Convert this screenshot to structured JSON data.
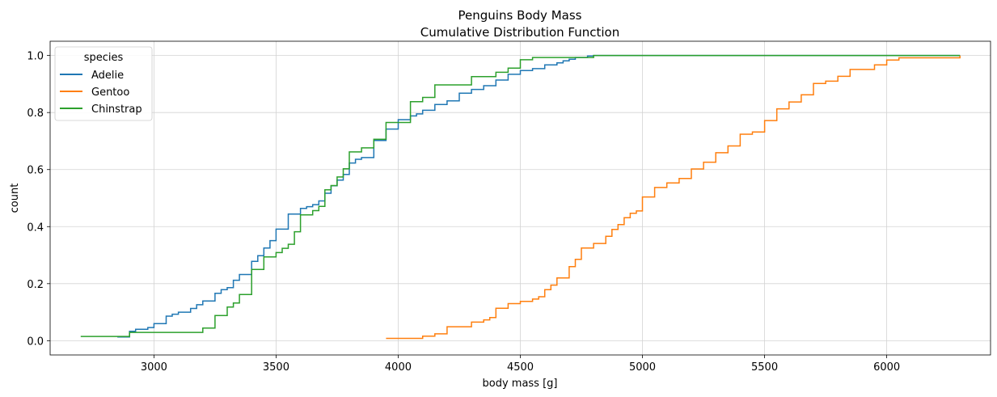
{
  "chart_data": {
    "type": "line",
    "title": "Penguins Body Mass",
    "subtitle": "Cumulative Distribution Function",
    "xlabel": "body mass [g]",
    "ylabel": "count",
    "xlim": [
      2575,
      6425
    ],
    "ylim": [
      -0.05,
      1.05
    ],
    "xticks": [
      3000,
      3500,
      4000,
      4500,
      5000,
      5500,
      6000
    ],
    "yticks": [
      0.0,
      0.2,
      0.4,
      0.6,
      0.8,
      1.0
    ],
    "ytick_labels": [
      "0.0",
      "0.2",
      "0.4",
      "0.6",
      "0.8",
      "1.0"
    ],
    "grid": true,
    "legend": {
      "title": "species",
      "position": "top-left"
    },
    "step": "post",
    "series": [
      {
        "name": "Adelie",
        "color": "#1f77b4",
        "x": [
          2850,
          2900,
          2925,
          2975,
          3000,
          3050,
          3075,
          3100,
          3150,
          3175,
          3200,
          3250,
          3275,
          3300,
          3325,
          3350,
          3400,
          3425,
          3450,
          3475,
          3500,
          3550,
          3600,
          3625,
          3650,
          3675,
          3700,
          3725,
          3750,
          3775,
          3800,
          3825,
          3850,
          3900,
          3950,
          4000,
          4050,
          4075,
          4100,
          4150,
          4200,
          4250,
          4300,
          4350,
          4400,
          4450,
          4500,
          4550,
          4600,
          4650,
          4675,
          4700,
          4725,
          4775,
          4800
        ],
        "y": [
          0.013,
          0.033,
          0.04,
          0.046,
          0.06,
          0.086,
          0.093,
          0.1,
          0.113,
          0.126,
          0.139,
          0.166,
          0.179,
          0.186,
          0.212,
          0.232,
          0.278,
          0.298,
          0.325,
          0.351,
          0.391,
          0.444,
          0.464,
          0.47,
          0.477,
          0.49,
          0.517,
          0.543,
          0.563,
          0.583,
          0.623,
          0.636,
          0.642,
          0.702,
          0.742,
          0.775,
          0.788,
          0.795,
          0.808,
          0.828,
          0.841,
          0.868,
          0.881,
          0.894,
          0.914,
          0.934,
          0.947,
          0.954,
          0.967,
          0.974,
          0.981,
          0.987,
          0.993,
          0.998,
          1.0
        ]
      },
      {
        "name": "Gentoo",
        "color": "#ff7f0e",
        "x": [
          3950,
          4100,
          4150,
          4200,
          4300,
          4350,
          4375,
          4400,
          4450,
          4500,
          4550,
          4575,
          4600,
          4625,
          4650,
          4700,
          4725,
          4750,
          4800,
          4850,
          4875,
          4900,
          4925,
          4950,
          4975,
          5000,
          5050,
          5100,
          5150,
          5200,
          5250,
          5300,
          5350,
          5400,
          5450,
          5500,
          5550,
          5600,
          5650,
          5700,
          5750,
          5800,
          5850,
          5950,
          6000,
          6050,
          6300
        ],
        "y": [
          0.008,
          0.016,
          0.024,
          0.049,
          0.065,
          0.073,
          0.081,
          0.114,
          0.13,
          0.138,
          0.146,
          0.154,
          0.179,
          0.195,
          0.22,
          0.26,
          0.285,
          0.325,
          0.341,
          0.366,
          0.39,
          0.407,
          0.431,
          0.447,
          0.455,
          0.504,
          0.537,
          0.553,
          0.569,
          0.602,
          0.626,
          0.659,
          0.683,
          0.724,
          0.732,
          0.772,
          0.813,
          0.837,
          0.862,
          0.902,
          0.91,
          0.927,
          0.951,
          0.967,
          0.984,
          0.992,
          1.0
        ]
      },
      {
        "name": "Chinstrap",
        "color": "#2ca02c",
        "x": [
          2700,
          2900,
          3200,
          3250,
          3300,
          3325,
          3350,
          3400,
          3450,
          3500,
          3525,
          3550,
          3575,
          3600,
          3650,
          3675,
          3700,
          3725,
          3750,
          3775,
          3800,
          3850,
          3900,
          3950,
          4050,
          4100,
          4150,
          4300,
          4400,
          4450,
          4500,
          4550,
          4800
        ],
        "y": [
          0.015,
          0.029,
          0.044,
          0.088,
          0.118,
          0.132,
          0.162,
          0.25,
          0.294,
          0.309,
          0.324,
          0.338,
          0.382,
          0.441,
          0.456,
          0.471,
          0.529,
          0.544,
          0.574,
          0.603,
          0.662,
          0.676,
          0.706,
          0.765,
          0.838,
          0.853,
          0.897,
          0.926,
          0.941,
          0.956,
          0.985,
          0.993,
          1.0
        ]
      }
    ]
  }
}
